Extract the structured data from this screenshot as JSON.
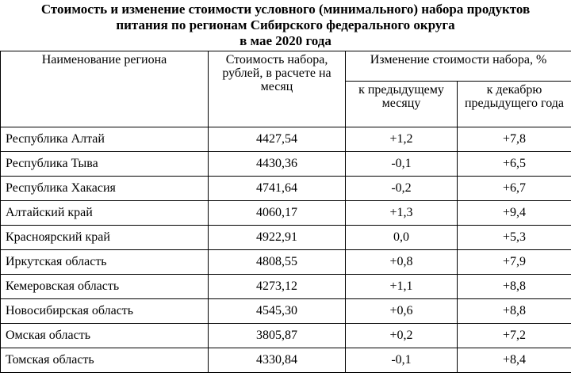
{
  "title": {
    "line1": "Стоимость и изменение стоимости условного (минимального) набора продуктов",
    "line2": "питания по регионам Сибирского федерального округа",
    "line3": "в мае 2020 года"
  },
  "headers": {
    "region": "Наименование региона",
    "cost": "Стоимость набора, рублей, в расчете на месяц",
    "change": "Изменение стоимости набора, %",
    "prev_month": "к предыдущему месяцу",
    "dec_prev_year": "к декабрю предыдущего года"
  },
  "rows": [
    {
      "region": "Республика Алтай",
      "cost": "4427,54",
      "prev_month": "+1,2",
      "dec": "+7,8"
    },
    {
      "region": "Республика Тыва",
      "cost": "4430,36",
      "prev_month": "-0,1",
      "dec": "+6,5"
    },
    {
      "region": "Республика Хакасия",
      "cost": "4741,64",
      "prev_month": "-0,2",
      "dec": "+6,7"
    },
    {
      "region": "Алтайский край",
      "cost": "4060,17",
      "prev_month": "+1,3",
      "dec": "+9,4"
    },
    {
      "region": "Красноярский край",
      "cost": "4922,91",
      "prev_month": "0,0",
      "dec": "+5,3"
    },
    {
      "region": "Иркутская область",
      "cost": "4808,55",
      "prev_month": "+0,8",
      "dec": "+7,9"
    },
    {
      "region": "Кемеровская область",
      "cost": "4273,12",
      "prev_month": "+1,1",
      "dec": "+8,8"
    },
    {
      "region": "Новосибирская область",
      "cost": "4545,30",
      "prev_month": "+0,6",
      "dec": "+8,8"
    },
    {
      "region": "Омская область",
      "cost": "3805,87",
      "prev_month": "+0,2",
      "dec": "+7,2"
    },
    {
      "region": "Томская область",
      "cost": "4330,84",
      "prev_month": "-0,1",
      "dec": "+8,4"
    }
  ]
}
